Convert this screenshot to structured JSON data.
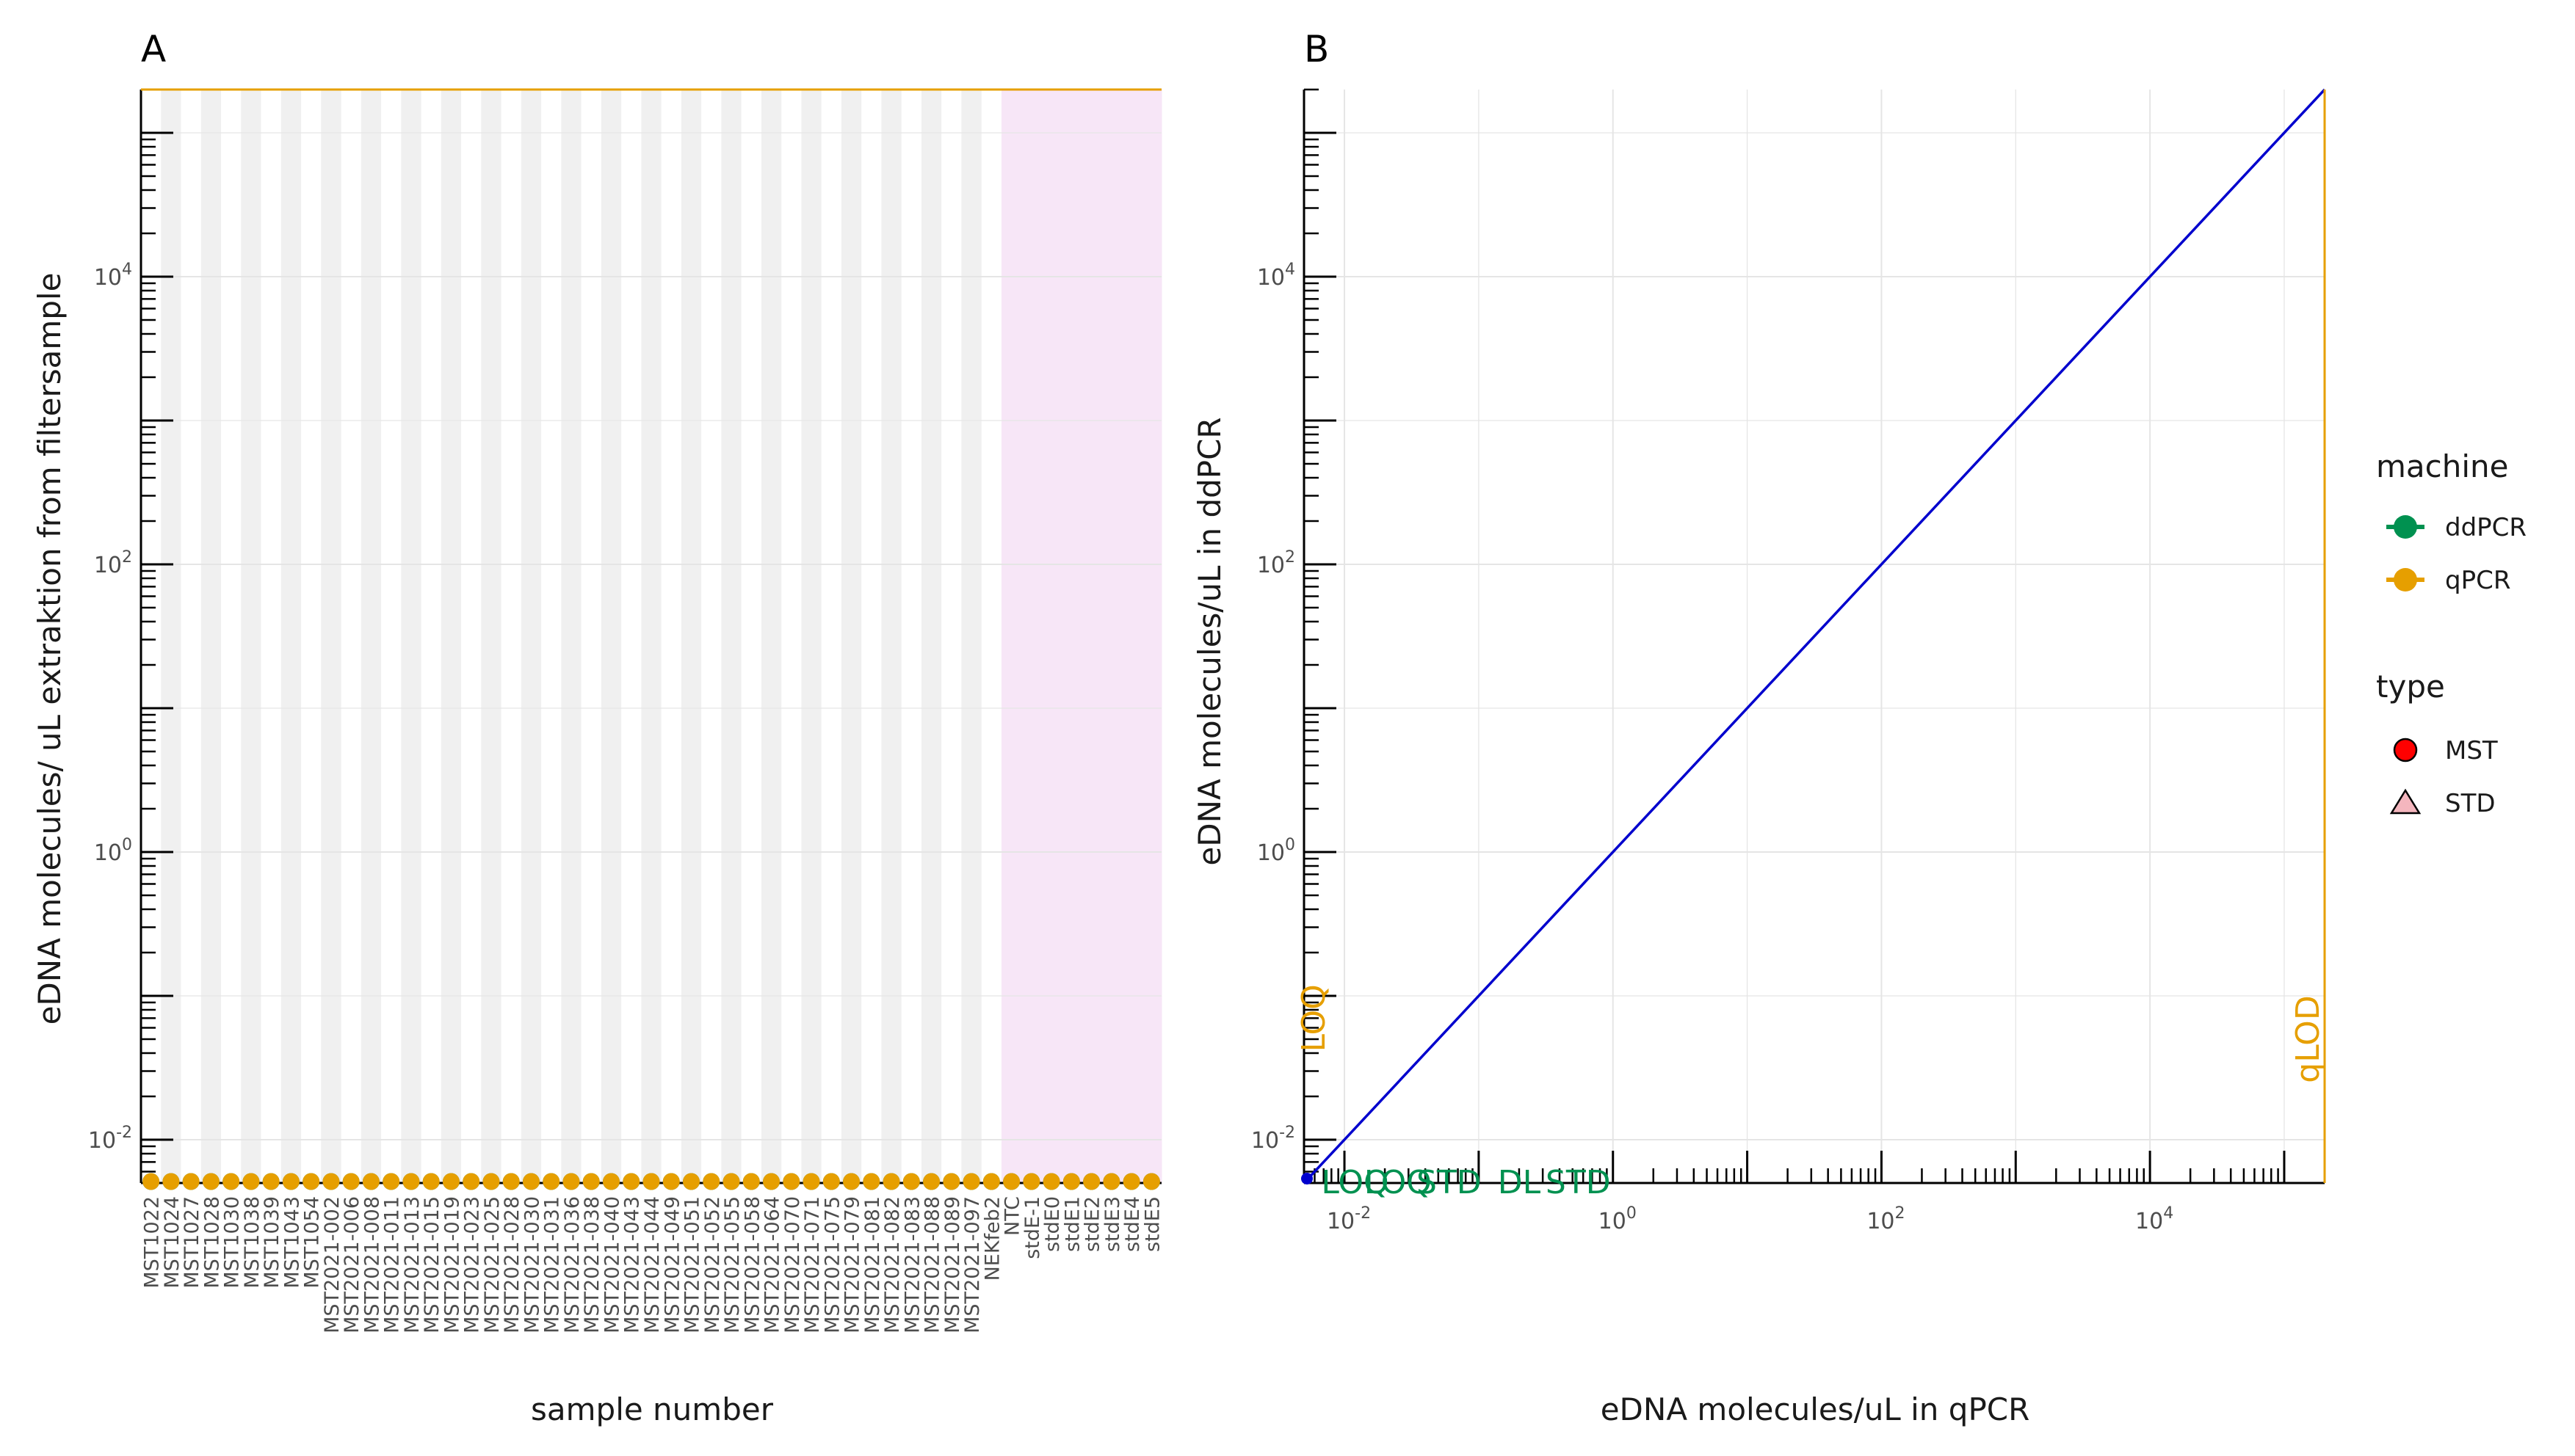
{
  "colors": {
    "ddPCR": "#009150",
    "qPCR": "#E69F00",
    "MST": "#FF0000",
    "STD": "#F4B6BE",
    "identity": "#0000CD",
    "band_grey": "#EBEBEB",
    "band_pink": "#F7E6F7",
    "grid": "#E5E5E5"
  },
  "chart_data": [
    {
      "panel": "A",
      "type": "scatter",
      "xlabel": "sample number",
      "ylabel": "eDNA molecules/ uL extraktion from filtersample",
      "y_scale": "log10",
      "ylim": [
        0.005,
        200000
      ],
      "y_ticks": [
        {
          "value": 0.01,
          "base": "10",
          "exp": "-2"
        },
        {
          "value": 1,
          "base": "10",
          "exp": "0"
        },
        {
          "value": 100,
          "base": "10",
          "exp": "2"
        },
        {
          "value": 10000,
          "base": "10",
          "exp": "4"
        }
      ],
      "hline": {
        "value": 200000,
        "series": "qPCR"
      },
      "categories": [
        "MST1022",
        "MST1024",
        "MST1027",
        "MST1028",
        "MST1030",
        "MST1038",
        "MST1039",
        "MST1043",
        "MST1054",
        "MST2021-002",
        "MST2021-006",
        "MST2021-008",
        "MST2021-011",
        "MST2021-013",
        "MST2021-015",
        "MST2021-019",
        "MST2021-023",
        "MST2021-025",
        "MST2021-028",
        "MST2021-030",
        "MST2021-031",
        "MST2021-036",
        "MST2021-038",
        "MST2021-040",
        "MST2021-043",
        "MST2021-044",
        "MST2021-049",
        "MST2021-051",
        "MST2021-052",
        "MST2021-055",
        "MST2021-058",
        "MST2021-064",
        "MST2021-070",
        "MST2021-071",
        "MST2021-075",
        "MST2021-079",
        "MST2021-081",
        "MST2021-082",
        "MST2021-083",
        "MST2021-088",
        "MST2021-089",
        "MST2021-097",
        "NEKfeb2",
        "NTC",
        "stdE-1",
        "stdE0",
        "stdE1",
        "stdE2",
        "stdE3",
        "stdE4",
        "stdE5"
      ],
      "std_from_index": 43,
      "series": [
        {
          "name": "ddPCR",
          "value_all": 0.005
        },
        {
          "name": "qPCR",
          "value_all": 0.005
        }
      ]
    },
    {
      "panel": "B",
      "type": "scatter",
      "xlabel": "eDNA molecules/uL in qPCR",
      "ylabel": "eDNA molecules/uL in ddPCR",
      "x_scale": "log10",
      "y_scale": "log10",
      "xlim": [
        0.005,
        200000
      ],
      "ylim": [
        0.005,
        200000
      ],
      "x_ticks": [
        {
          "value": 0.01,
          "base": "10",
          "exp": "-2"
        },
        {
          "value": 1,
          "base": "10",
          "exp": "0"
        },
        {
          "value": 100,
          "base": "10",
          "exp": "2"
        },
        {
          "value": 10000,
          "base": "10",
          "exp": "4"
        }
      ],
      "y_ticks": [
        {
          "value": 0.01,
          "base": "10",
          "exp": "-2"
        },
        {
          "value": 1,
          "base": "10",
          "exp": "0"
        },
        {
          "value": 100,
          "base": "10",
          "exp": "2"
        },
        {
          "value": 10000,
          "base": "10",
          "exp": "4"
        }
      ],
      "identity_line": true,
      "vline": {
        "value": 200000,
        "series": "qPCR"
      },
      "annotations": [
        {
          "text": "LOQ",
          "series": "ddPCR",
          "x": 0.012,
          "y": 0.005
        },
        {
          "text": "LOQ",
          "series": "ddPCR",
          "x": 0.025,
          "y": 0.005
        },
        {
          "text": "STD",
          "series": "ddPCR",
          "x": 0.06,
          "y": 0.005
        },
        {
          "text": "DL",
          "series": "ddPCR",
          "x": 0.2,
          "y": 0.005
        },
        {
          "text": "STD",
          "series": "ddPCR",
          "x": 0.55,
          "y": 0.005
        },
        {
          "text": "LOQ",
          "series": "qPCR",
          "x": 0.005,
          "y": 0.07
        },
        {
          "text": "qLOD",
          "series": "qPCR",
          "x": 200000,
          "y": 0.05
        }
      ]
    }
  ],
  "legend": {
    "machine_title": "machine",
    "machine_items": [
      {
        "label": "ddPCR",
        "series": "ddPCR"
      },
      {
        "label": "qPCR",
        "series": "qPCR"
      }
    ],
    "type_title": "type",
    "type_items": [
      {
        "label": "MST",
        "shape": "circle"
      },
      {
        "label": "STD",
        "shape": "triangle"
      }
    ]
  }
}
